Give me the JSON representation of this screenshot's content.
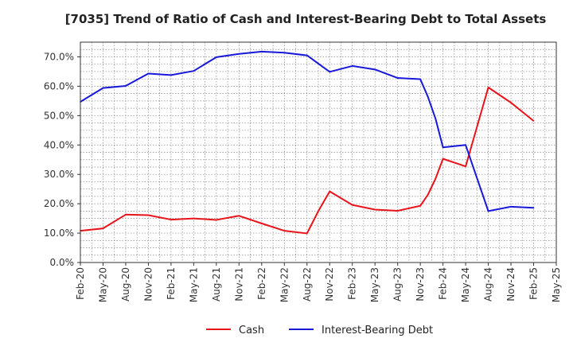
{
  "chart_data": {
    "type": "line",
    "title": "[7035]  Trend of Ratio of Cash and Interest-Bearing Debt to Total Assets",
    "xlabel": "",
    "ylabel": "",
    "ylim": [
      0,
      75
    ],
    "y_ticks": [
      0,
      10,
      20,
      30,
      40,
      50,
      60,
      70
    ],
    "y_tick_labels": [
      "0.0%",
      "10.0%",
      "20.0%",
      "30.0%",
      "40.0%",
      "50.0%",
      "60.0%",
      "70.0%"
    ],
    "x_tick_labels": [
      "Feb-20",
      "May-20",
      "Aug-20",
      "Nov-20",
      "Feb-21",
      "May-21",
      "Aug-21",
      "Nov-21",
      "Feb-22",
      "May-22",
      "Aug-22",
      "Nov-22",
      "Feb-23",
      "May-23",
      "Aug-23",
      "Nov-23",
      "Feb-24",
      "May-24",
      "Aug-24",
      "Nov-24",
      "Feb-25",
      "May-25"
    ],
    "grid": true,
    "legend_position": "bottom-center",
    "series": [
      {
        "name": "Cash",
        "color": "#e8141b",
        "x": [
          0,
          1,
          2,
          3,
          4,
          5,
          6,
          7,
          8,
          9,
          10,
          10.5,
          11,
          12,
          13,
          14,
          15,
          15.33,
          15.67,
          16,
          17,
          18,
          19,
          20
        ],
        "values": [
          10.8,
          11.6,
          16.3,
          16.1,
          14.6,
          15.0,
          14.5,
          15.9,
          13.3,
          10.8,
          9.9,
          17.5,
          24.2,
          19.6,
          18.0,
          17.6,
          19.3,
          23.0,
          28.5,
          35.3,
          32.7,
          59.6,
          54.4,
          48.2
        ]
      },
      {
        "name": "Interest-Bearing Debt",
        "color": "#1818d8",
        "x": [
          0,
          1,
          2,
          3,
          4,
          5,
          6,
          7,
          8,
          9,
          10,
          11,
          12,
          13,
          14,
          15,
          15.33,
          15.67,
          16,
          17,
          18,
          19,
          20
        ],
        "values": [
          54.7,
          59.4,
          60.1,
          64.3,
          63.8,
          65.2,
          69.9,
          71.0,
          71.8,
          71.4,
          70.5,
          64.9,
          66.9,
          65.7,
          62.8,
          62.4,
          56.5,
          49.0,
          39.2,
          40.0,
          17.5,
          19.0,
          18.6
        ]
      }
    ]
  }
}
